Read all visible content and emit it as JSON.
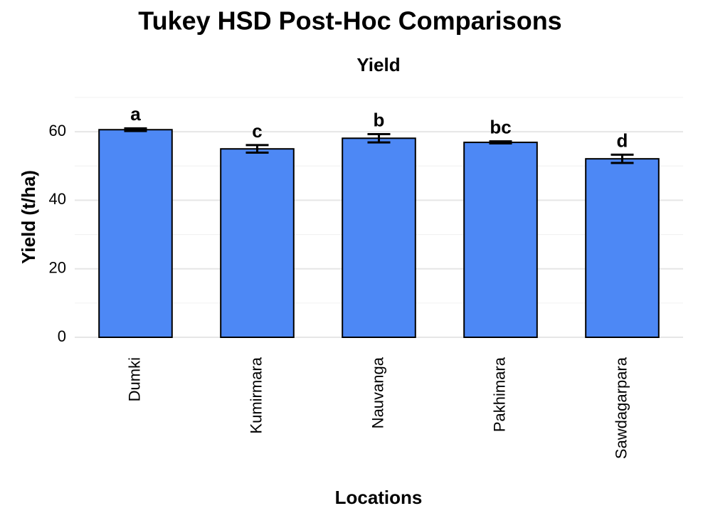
{
  "chart_data": {
    "type": "bar",
    "title": "Tukey HSD Post-Hoc Comparisons",
    "subtitle": "Yield",
    "x_label": "Locations",
    "y_label": "Yield (t/ha)",
    "categories": [
      "Dumki",
      "Kumirmara",
      "Nauvanga",
      "Pakhimara",
      "Sawdagarpara"
    ],
    "values": [
      60.6,
      55.0,
      58.1,
      56.9,
      52.1
    ],
    "errors": [
      0.4,
      1.1,
      1.2,
      0.3,
      1.2
    ],
    "group_letters": [
      "a",
      "c",
      "b",
      "bc",
      "d"
    ],
    "color": "#4d88f5",
    "ylim": [
      0,
      70
    ],
    "yticks": [
      0,
      20,
      40,
      60
    ],
    "minor_yticks": [
      10,
      30,
      50,
      70
    ],
    "grid": true
  }
}
